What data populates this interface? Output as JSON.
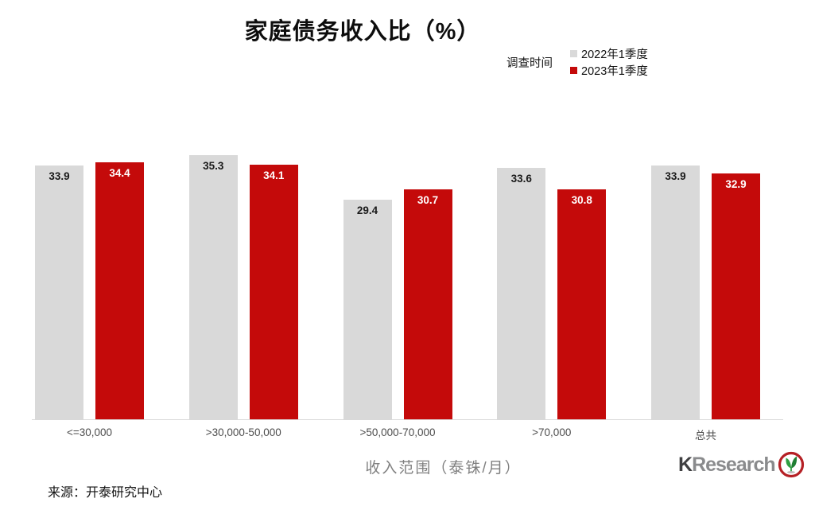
{
  "chart_data": {
    "type": "bar",
    "title": "家庭债务收入比（%）",
    "legend_title": "调查时间",
    "legend_position": "top-right",
    "categories": [
      "<=30,000",
      ">30,000-50,000",
      ">50,000-70,000",
      ">70,000",
      "总共"
    ],
    "series": [
      {
        "name": "2022年1季度",
        "color": "#d9d9d9",
        "label_color": "#1a1a1a",
        "values": [
          33.9,
          35.3,
          29.4,
          33.6,
          33.9
        ]
      },
      {
        "name": "2023年1季度",
        "color": "#c40a0a",
        "label_color": "#ffffff",
        "values": [
          34.4,
          34.1,
          30.7,
          30.8,
          32.9
        ]
      }
    ],
    "xlabel": "收入范围（泰铢/月）",
    "ylabel": "",
    "ylim": [
      0,
      40
    ],
    "grid": false,
    "value_labels": "inside-top"
  },
  "footer": {
    "source": "来源：开泰研究中心",
    "logo": {
      "text_k": "K",
      "text_research": "Research",
      "icon": "kasikorn-sprout-icon",
      "ring_color": "#b52025",
      "leaf_color": "#2f9e41"
    }
  }
}
